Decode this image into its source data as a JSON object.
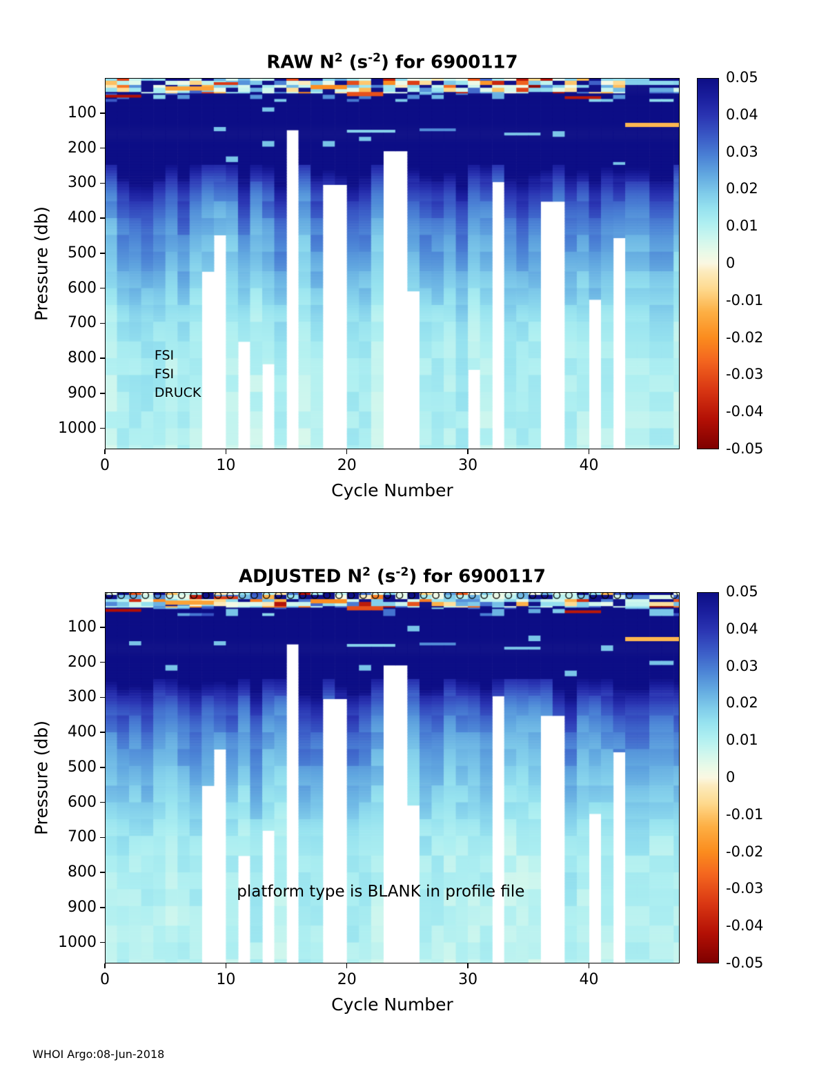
{
  "figure": {
    "footer": "WHOI Argo:08-Jun-2018",
    "background_color": "#ffffff",
    "text_color": "#000000"
  },
  "colormap": {
    "description": "diverging: dark red (-0.05) through orange and cream (0) to cyan, blue and dark navy (0.05)",
    "stops": [
      [
        -0.05,
        "#7e0000"
      ],
      [
        -0.042,
        "#b31005"
      ],
      [
        -0.034,
        "#d93713"
      ],
      [
        -0.026,
        "#f4671f"
      ],
      [
        -0.02,
        "#fb8c1e"
      ],
      [
        -0.013,
        "#fdb045"
      ],
      [
        -0.007,
        "#fed98c"
      ],
      [
        -0.002,
        "#fcecc0"
      ],
      [
        0.0,
        "#fbf8e2"
      ],
      [
        0.003,
        "#e9fae8"
      ],
      [
        0.007,
        "#ccf6ee"
      ],
      [
        0.011,
        "#aeeff1"
      ],
      [
        0.015,
        "#96e2ef"
      ],
      [
        0.019,
        "#7fcbea"
      ],
      [
        0.024,
        "#62a8e0"
      ],
      [
        0.029,
        "#4b82d5"
      ],
      [
        0.034,
        "#3b5cc7"
      ],
      [
        0.04,
        "#2a34b2"
      ],
      [
        0.045,
        "#1a1e9d"
      ],
      [
        0.05,
        "#0d0e86"
      ]
    ]
  },
  "chart_data": [
    {
      "type": "heatmap",
      "id": "raw",
      "title": "RAW N^2 (s^-2) for 6900117",
      "title_parts": {
        "prefix": "RAW N",
        "sup1": "2",
        "mid": " (s",
        "sup2": "-2",
        "suffix": ") for 6900117"
      },
      "xlabel": "Cycle Number",
      "ylabel": "Pressure (db)",
      "xlim": [
        0,
        47.5
      ],
      "ylim_db": [
        0,
        1060
      ],
      "xticks": [
        0,
        10,
        20,
        30,
        40
      ],
      "xtick_labels": [
        "0",
        "10",
        "20",
        "30",
        "40"
      ],
      "yticks": [
        100,
        200,
        300,
        400,
        500,
        600,
        700,
        800,
        900,
        1000
      ],
      "ytick_labels": [
        "100",
        "200",
        "300",
        "400",
        "500",
        "600",
        "700",
        "800",
        "900",
        "1000"
      ],
      "colorbar_ticks": [
        "0.05",
        "0.04",
        "0.03",
        "0.02",
        "0.01",
        "0",
        "-0.01",
        "-0.02",
        "-0.03",
        "-0.04",
        "-0.05"
      ],
      "value_range": [
        -0.05,
        0.05
      ],
      "n_cycles": 48,
      "base_profile": {
        "pressure_db": [
          0,
          60,
          250,
          290,
          330,
          380,
          440,
          500,
          560,
          620,
          680,
          760,
          900,
          1060
        ],
        "n2": [
          0.05,
          0.05,
          0.05,
          0.041,
          0.034,
          0.029,
          0.025,
          0.022,
          0.019,
          0.016,
          0.013,
          0.011,
          0.01,
          0.009
        ]
      },
      "missing_data": [
        {
          "cycle": 8,
          "below_db": 555
        },
        {
          "cycle": 9,
          "below_db": 450
        },
        {
          "cycle": 11,
          "below_db": 755
        },
        {
          "cycle": 13,
          "below_db": 815
        },
        {
          "cycle": 15,
          "below_db": 150
        },
        {
          "cycle": 18,
          "below_db": 305,
          "span": 1.5
        },
        {
          "cycle": 22.5,
          "below_db": 205,
          "span": 1.8
        },
        {
          "cycle": 25,
          "below_db": 605
        },
        {
          "cycle": 29.5,
          "below_db": 830
        },
        {
          "cycle": 32,
          "below_db": 300
        },
        {
          "cycle": 36,
          "below_db": 350,
          "span": 1.6
        },
        {
          "cycle": 40,
          "below_db": 635
        },
        {
          "cycle": 42,
          "below_db": 455
        }
      ],
      "surface_streaks": [
        {
          "cycles": [
            0,
            2
          ],
          "pressure_db": 52,
          "n2": -0.042,
          "half_db": 5
        },
        {
          "cycles": [
            5,
            8
          ],
          "pressure_db": 30,
          "n2": -0.016,
          "half_db": 4
        },
        {
          "cycles": [
            9,
            10
          ],
          "pressure_db": 16,
          "n2": -0.034,
          "half_db": 4
        },
        {
          "cycles": [
            17,
            19
          ],
          "pressure_db": 26,
          "n2": -0.02,
          "half_db": 4
        },
        {
          "cycles": [
            20,
            22
          ],
          "pressure_db": 46,
          "n2": -0.03,
          "half_db": 5
        },
        {
          "cycles": [
            20,
            23
          ],
          "pressure_db": 152,
          "n2": 0.018,
          "half_db": 4
        },
        {
          "cycles": [
            26,
            28
          ],
          "pressure_db": 148,
          "n2": 0.028,
          "half_db": 4
        },
        {
          "cycles": [
            33,
            35
          ],
          "pressure_db": 160,
          "n2": 0.02,
          "half_db": 4
        },
        {
          "cycles": [
            38,
            40
          ],
          "pressure_db": 56,
          "n2": -0.04,
          "half_db": 5
        },
        {
          "cycles": [
            43,
            48
          ],
          "pressure_db": 134,
          "n2": -0.012,
          "half_db": 5
        }
      ],
      "annotations": [
        {
          "text": "FSI",
          "cycle": 4.1,
          "pressure": 795,
          "size": 19,
          "align": "left"
        },
        {
          "text": "FSI",
          "cycle": 4.1,
          "pressure": 848,
          "size": 19,
          "align": "left"
        },
        {
          "text": "DRUCK",
          "cycle": 4.1,
          "pressure": 902,
          "size": 19,
          "align": "left"
        }
      ],
      "top_markers": null,
      "noise_seed": 3
    },
    {
      "type": "heatmap",
      "id": "adjusted",
      "title": "ADJUSTED N^2 (s^-2) for 6900117",
      "title_parts": {
        "prefix": "ADJUSTED N",
        "sup1": "2",
        "mid": " (s",
        "sup2": "-2",
        "suffix": ") for 6900117"
      },
      "xlabel": "Cycle Number",
      "ylabel": "Pressure (db)",
      "xlim": [
        0,
        47.5
      ],
      "ylim_db": [
        0,
        1060
      ],
      "xticks": [
        0,
        10,
        20,
        30,
        40
      ],
      "xtick_labels": [
        "0",
        "10",
        "20",
        "30",
        "40"
      ],
      "yticks": [
        100,
        200,
        300,
        400,
        500,
        600,
        700,
        800,
        900,
        1000
      ],
      "ytick_labels": [
        "100",
        "200",
        "300",
        "400",
        "500",
        "600",
        "700",
        "800",
        "900",
        "1000"
      ],
      "colorbar_ticks": [
        "0.05",
        "0.04",
        "0.03",
        "0.02",
        "0.01",
        "0",
        "-0.01",
        "-0.02",
        "-0.03",
        "-0.04",
        "-0.05"
      ],
      "value_range": [
        -0.05,
        0.05
      ],
      "n_cycles": 48,
      "base_profile": {
        "pressure_db": [
          0,
          60,
          250,
          290,
          330,
          380,
          440,
          500,
          560,
          620,
          680,
          760,
          900,
          1060
        ],
        "n2": [
          0.05,
          0.05,
          0.05,
          0.041,
          0.034,
          0.029,
          0.025,
          0.022,
          0.019,
          0.016,
          0.013,
          0.011,
          0.01,
          0.009
        ]
      },
      "missing_data": [
        {
          "cycle": 8,
          "below_db": 555
        },
        {
          "cycle": 9,
          "below_db": 450
        },
        {
          "cycle": 10.5,
          "below_db": 755
        },
        {
          "cycle": 12.5,
          "below_db": 680
        },
        {
          "cycle": 15,
          "below_db": 150
        },
        {
          "cycle": 18,
          "below_db": 305,
          "span": 1.5
        },
        {
          "cycle": 22.5,
          "below_db": 205,
          "span": 1.8
        },
        {
          "cycle": 25,
          "below_db": 605
        },
        {
          "cycle": 32,
          "below_db": 300
        },
        {
          "cycle": 36,
          "below_db": 350,
          "span": 1.6
        },
        {
          "cycle": 40,
          "below_db": 635
        },
        {
          "cycle": 42,
          "below_db": 455
        }
      ],
      "surface_streaks": [
        {
          "cycles": [
            0,
            2
          ],
          "pressure_db": 52,
          "n2": -0.042,
          "half_db": 5
        },
        {
          "cycles": [
            5,
            8
          ],
          "pressure_db": 30,
          "n2": -0.016,
          "half_db": 4
        },
        {
          "cycles": [
            9,
            10
          ],
          "pressure_db": 16,
          "n2": -0.034,
          "half_db": 4
        },
        {
          "cycles": [
            17,
            19
          ],
          "pressure_db": 26,
          "n2": -0.02,
          "half_db": 4
        },
        {
          "cycles": [
            20,
            22
          ],
          "pressure_db": 46,
          "n2": -0.03,
          "half_db": 5
        },
        {
          "cycles": [
            20,
            23
          ],
          "pressure_db": 152,
          "n2": 0.018,
          "half_db": 4
        },
        {
          "cycles": [
            26,
            28
          ],
          "pressure_db": 148,
          "n2": 0.028,
          "half_db": 4
        },
        {
          "cycles": [
            33,
            35
          ],
          "pressure_db": 160,
          "n2": 0.02,
          "half_db": 4
        },
        {
          "cycles": [
            38,
            40
          ],
          "pressure_db": 56,
          "n2": -0.04,
          "half_db": 5
        },
        {
          "cycles": [
            43,
            48
          ],
          "pressure_db": 134,
          "n2": -0.012,
          "half_db": 5
        }
      ],
      "annotations": [
        {
          "text": "platform type is BLANK in profile file",
          "cycle": 22.8,
          "pressure": 858,
          "size": 23,
          "align": "center"
        }
      ],
      "top_markers": {
        "symbol": "o",
        "pressure_db": 8,
        "cycles": [
          0,
          1,
          2,
          3,
          4,
          5,
          6,
          7,
          8,
          9,
          10,
          11,
          12,
          13,
          14,
          15,
          16,
          17,
          18,
          19,
          20,
          21,
          22,
          23,
          24,
          25,
          26,
          27,
          28,
          29,
          30,
          31,
          32,
          33,
          34,
          35,
          36,
          37,
          38,
          39,
          40,
          41,
          42,
          43,
          46.7,
          47.4
        ]
      },
      "noise_seed": 5
    }
  ]
}
